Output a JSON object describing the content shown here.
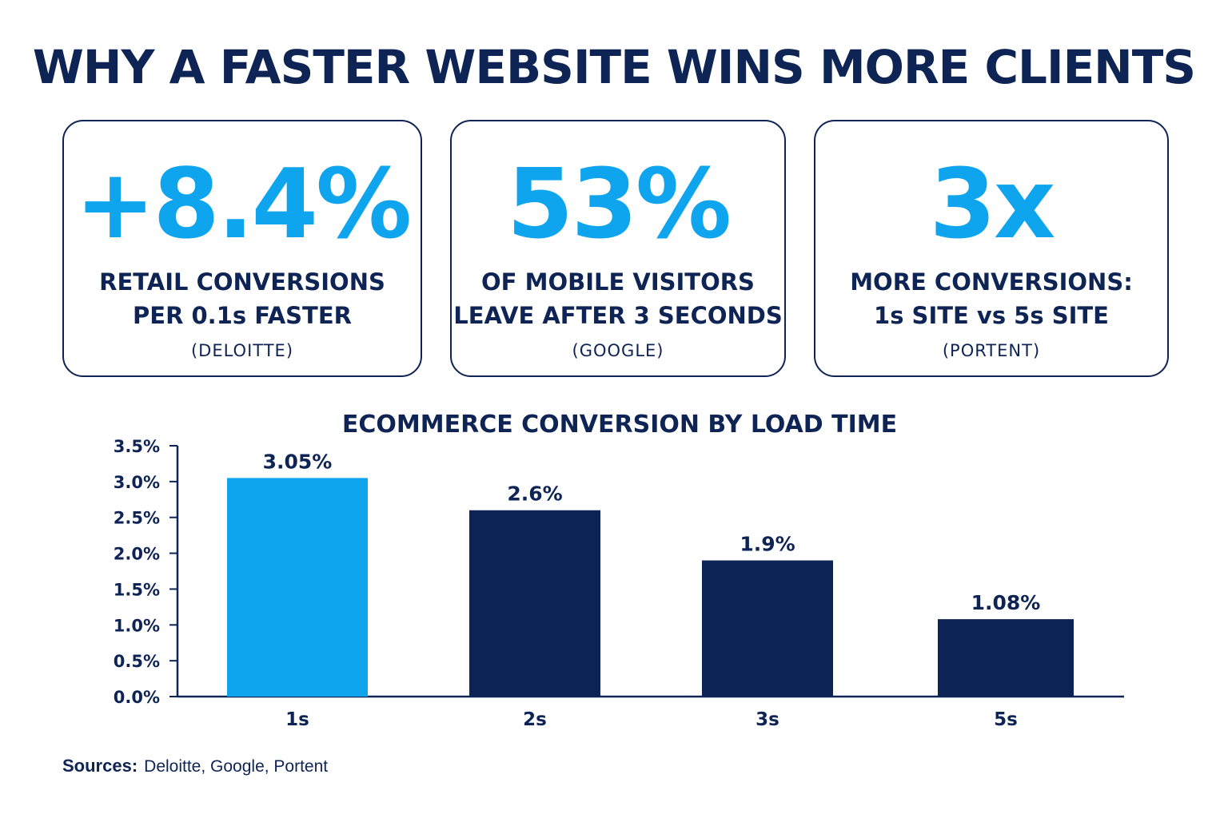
{
  "title": "WHY A FASTER WEBSITE WINS MORE CLIENTS",
  "colors": {
    "navy": "#0e2455",
    "accent": "#0ea5ee",
    "bar_highlight": "#0ea5ee",
    "bar_default": "#0c2356"
  },
  "cards": [
    {
      "stat": "+8.4%",
      "line1": "RETAIL CONVERSIONS",
      "line2": "PER 0.1s FASTER",
      "source": "(DELOITTE)"
    },
    {
      "stat": "53%",
      "line1": "OF MOBILE VISITORS",
      "line2": "LEAVE AFTER 3 SECONDS",
      "source": "(GOOGLE)"
    },
    {
      "stat": "3x",
      "line1": "MORE CONVERSIONS:",
      "line2": "1s SITE vs 5s SITE",
      "source": "(PORTENT)"
    }
  ],
  "chart_data": {
    "type": "bar",
    "title": "ECOMMERCE CONVERSION BY LOAD TIME",
    "categories": [
      "1s",
      "2s",
      "3s",
      "5s"
    ],
    "values": [
      3.05,
      2.6,
      1.9,
      1.08
    ],
    "value_labels": [
      "3.05%",
      "2.6%",
      "1.9%",
      "1.08%"
    ],
    "highlight_index": 0,
    "ylim": [
      0,
      3.5
    ],
    "yticks": [
      0,
      0.5,
      1.0,
      1.5,
      2.0,
      2.5,
      3.0,
      3.5
    ],
    "ytick_labels": [
      "0.0%",
      "0.5%",
      "1.0%",
      "1.5%",
      "2.0%",
      "2.5%",
      "3.0%",
      "3.5%"
    ],
    "xlabel": "",
    "ylabel": "",
    "grid": false
  },
  "sources": {
    "label": "Sources:",
    "text": "Deloitte, Google, Portent"
  }
}
